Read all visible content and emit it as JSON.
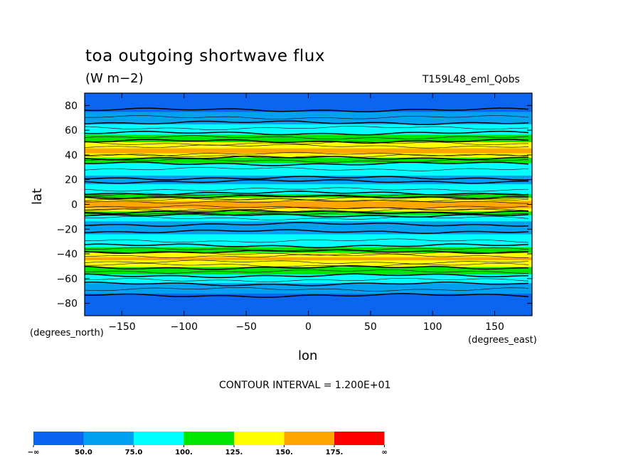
{
  "chart_data": {
    "type": "heatmap",
    "title": "toa outgoing shortwave flux",
    "units": "(W m−2)",
    "run_label": "T159L48_eml_Qobs",
    "xlabel": "lon",
    "ylabel": "lat",
    "x_unit_label": "(degrees_east)",
    "y_unit_label": "(degrees_north)",
    "xlim": [
      -180,
      180
    ],
    "ylim": [
      -90,
      90
    ],
    "x_ticks": [
      -150,
      -100,
      -50,
      0,
      50,
      100,
      150
    ],
    "y_ticks": [
      80,
      60,
      40,
      20,
      0,
      -20,
      -40,
      -60,
      -80
    ],
    "x_tick_labels": [
      "−150",
      "−100",
      "−50",
      "0",
      "50",
      "100",
      "150"
    ],
    "y_tick_labels": [
      "80",
      "60",
      "40",
      "20",
      "0",
      "−20",
      "−40",
      "−60",
      "−80"
    ],
    "contour_interval_text": "CONTOUR INTERVAL = 1.200E+01",
    "contour_interval": 12,
    "colors": [
      "#0a64f0",
      "#00a0f0",
      "#00ffff",
      "#00e600",
      "#ffff00",
      "#ffa500",
      "#ff0000"
    ],
    "levels": [
      50,
      75,
      100,
      125,
      150,
      175
    ],
    "colorbar_labels": [
      "−∞",
      "50.0",
      "75.0",
      "100.",
      "125.",
      "150.",
      "175.",
      "∞"
    ],
    "zonal_profile": {
      "lat": [
        -90,
        -80,
        -72,
        -65,
        -58,
        -52,
        -48,
        -45,
        -43,
        -40,
        -37,
        -33,
        -28,
        -22,
        -18,
        -14,
        -10,
        -7,
        -4,
        -2,
        0,
        2,
        4,
        7,
        10,
        14,
        20,
        26,
        32,
        37,
        40,
        42,
        45,
        48,
        52,
        58,
        65,
        72,
        80,
        90
      ],
      "flux": [
        40,
        40,
        50,
        70,
        95,
        115,
        138,
        150,
        152,
        135,
        110,
        95,
        80,
        72,
        70,
        74,
        88,
        110,
        140,
        160,
        165,
        160,
        140,
        110,
        90,
        78,
        70,
        78,
        92,
        115,
        140,
        152,
        153,
        140,
        115,
        95,
        75,
        55,
        42,
        40
      ]
    }
  }
}
